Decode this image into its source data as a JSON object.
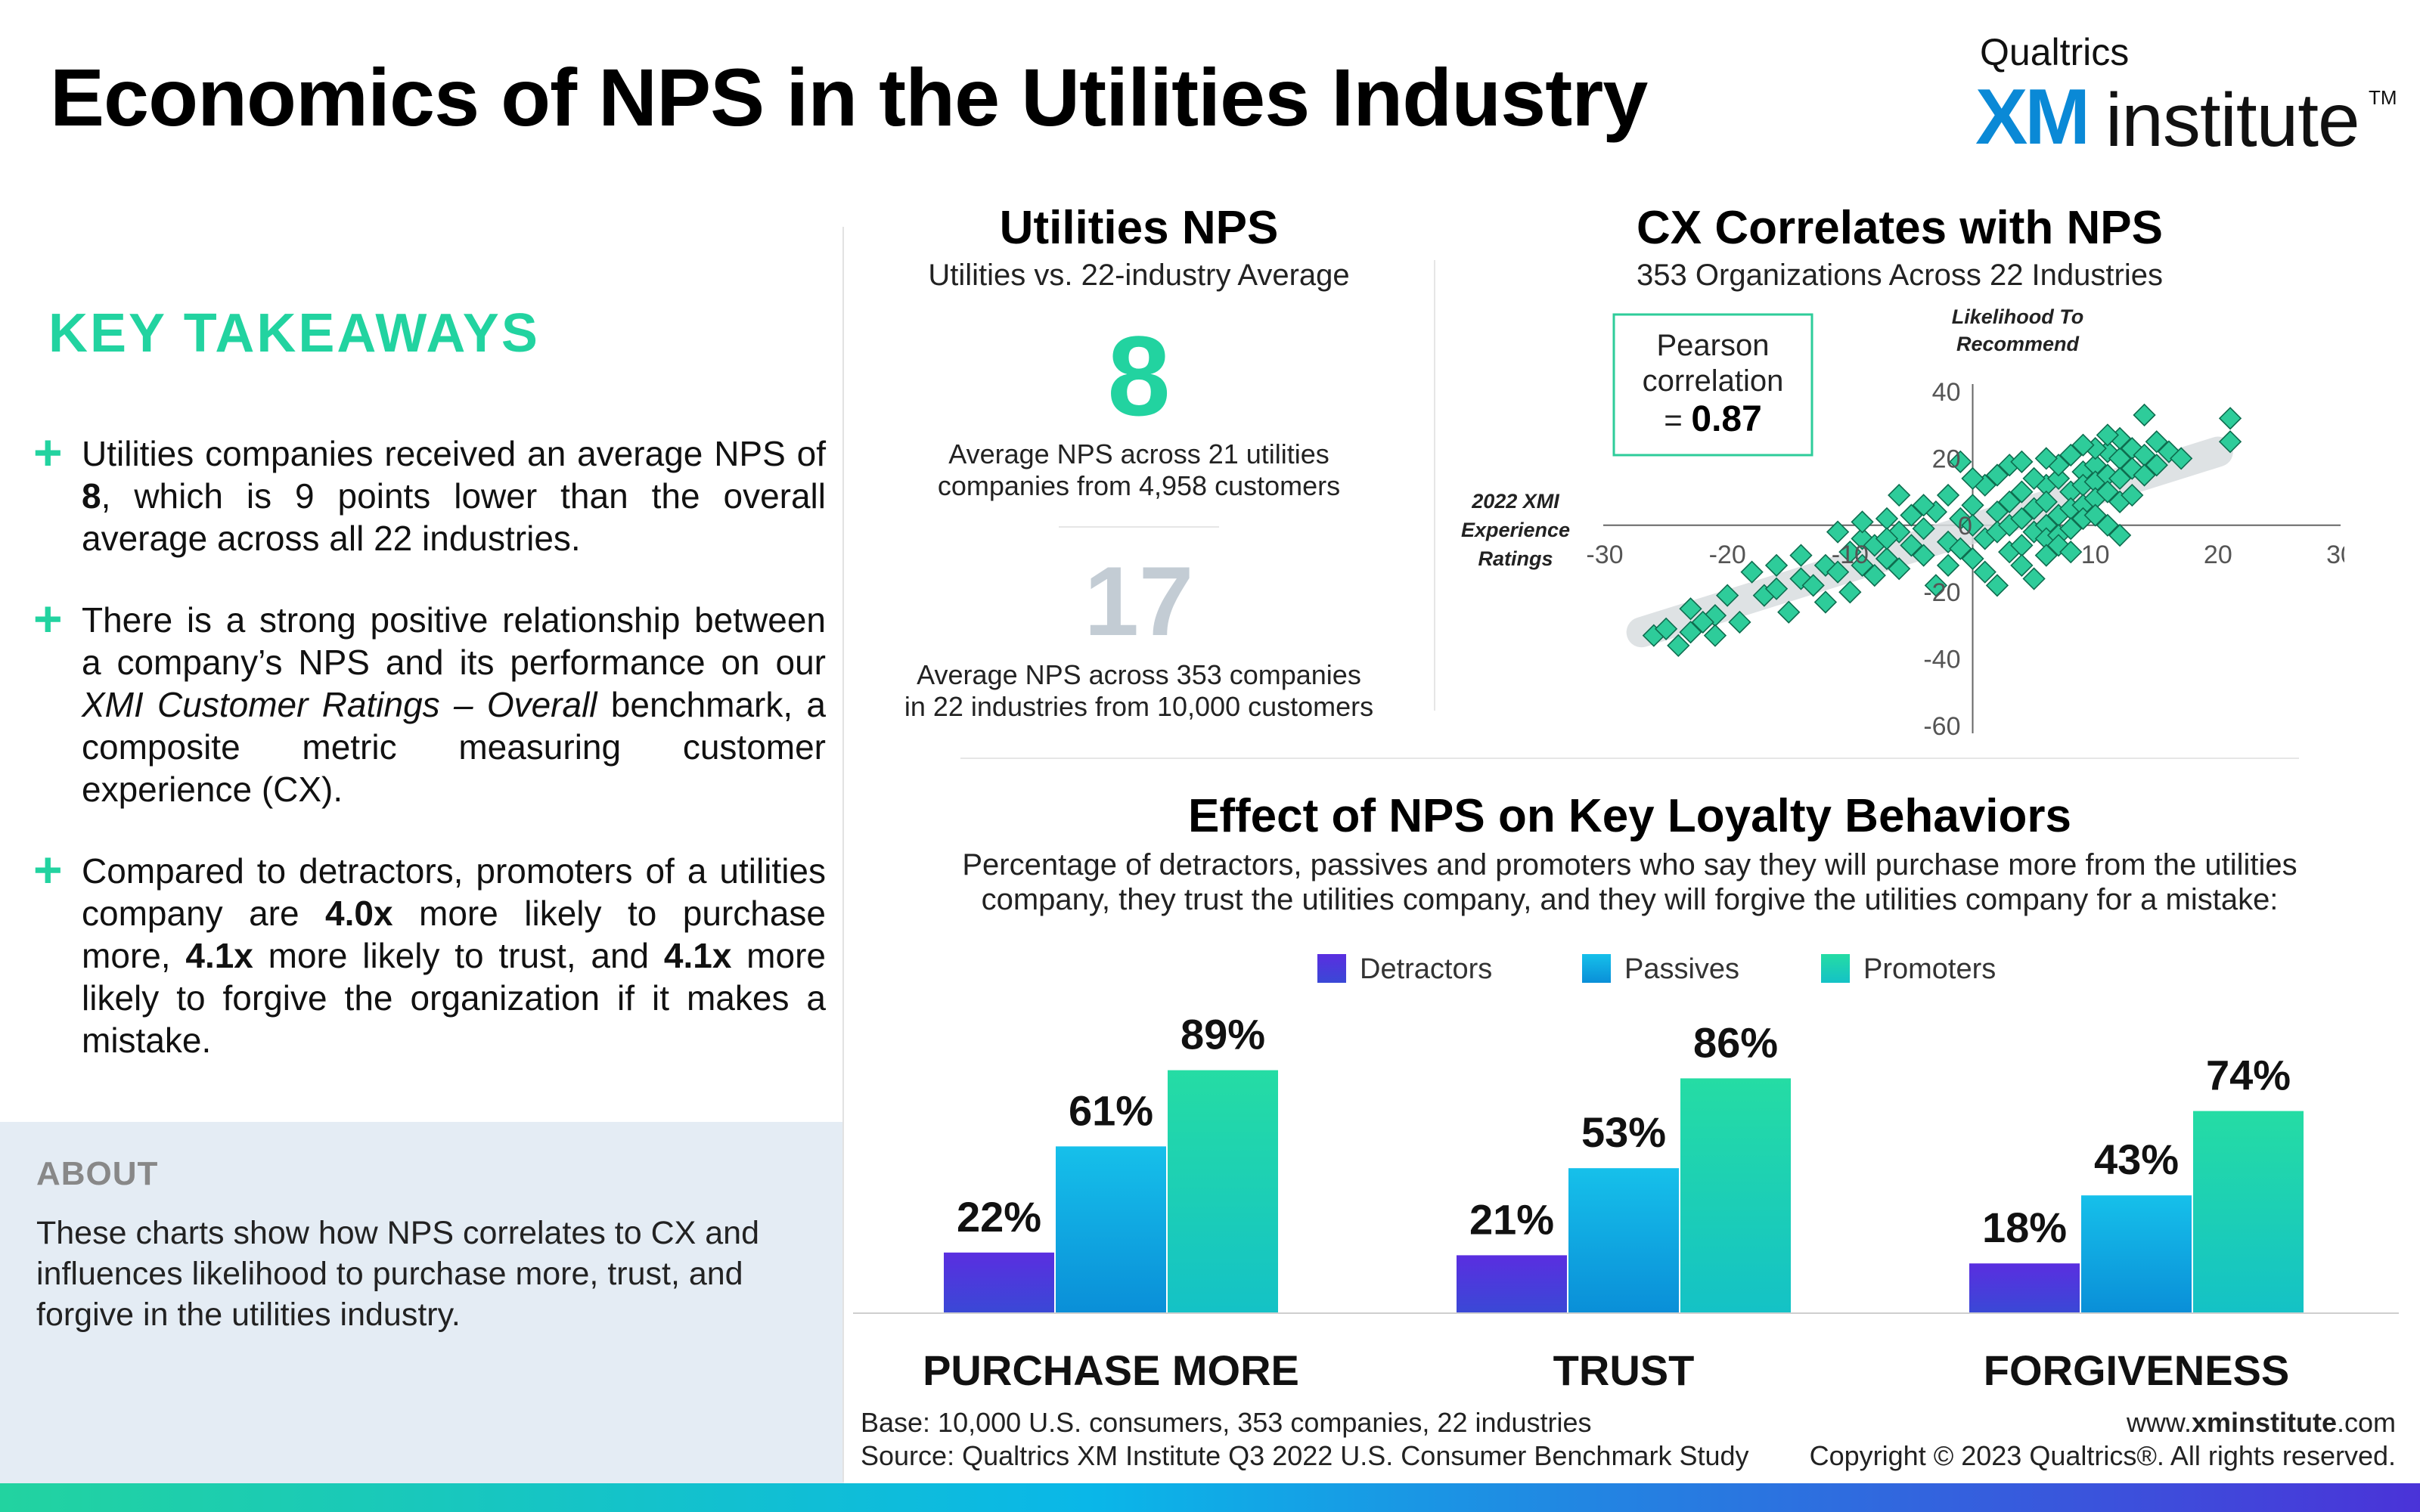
{
  "header": {
    "title": "Economics of NPS in the Utilities Industry",
    "logo": {
      "brand": "Qualtrics",
      "xm": "XM",
      "institute": "institute",
      "tm": "TM"
    }
  },
  "takeaways": {
    "title": "KEY TAKEAWAYS",
    "items": [
      {
        "text_html": "Utilities companies received an average NPS of <b>8</b>, which is 9 points lower than the overall average across all 22 industries."
      },
      {
        "text_html": "There is a strong positive relationship between a company’s NPS and its performance on our <i>XMI Customer Ratings – Overall</i> benchmark, a composite metric measuring customer experience (CX)."
      },
      {
        "text_html": "Compared to detractors, promoters of a utilities company are <b>4.0x</b> more likely to purchase more, <b>4.1x</b> more likely to trust, and <b>4.1x</b> more likely to forgive the organization if it makes a mistake."
      }
    ]
  },
  "about": {
    "title": "ABOUT",
    "text": "These charts show how NPS correlates to CX and influences likelihood to purchase more, trust, and forgive in the utilities industry."
  },
  "nps_panel": {
    "title": "Utilities NPS",
    "subtitle": "Utilities vs. 22-industry Average",
    "utilities_nps": "8",
    "utilities_caption_1": "Average NPS across 21 utilities",
    "utilities_caption_2": "companies from 4,958 customers",
    "industry_nps": "17",
    "industry_caption_1": "Average NPS across 353 companies",
    "industry_caption_2": "in 22 industries from 10,000 customers"
  },
  "scatter_panel": {
    "title": "CX Correlates with NPS",
    "subtitle": "353 Organizations Across 22 Industries",
    "pearson_1": "Pearson",
    "pearson_2": "correlation",
    "pearson_3": "= ",
    "pearson_value": "0.87"
  },
  "bars_panel": {
    "title": "Effect of NPS on Key Loyalty Behaviors",
    "subtitle_1": "Percentage of detractors, passives and promoters who say they will purchase more from the utilities",
    "subtitle_2": "company, they trust the utilities company, and they will forgive the utilities company for a mistake:"
  },
  "chart_data": [
    {
      "type": "scatter",
      "title": "CX Correlates with NPS",
      "subtitle": "353 Organizations Across 22 Industries",
      "xlabel": "2022 XMI Experience Ratings",
      "ylabel": "Likelihood To Recommend",
      "xlim": [
        -30,
        30
      ],
      "ylim": [
        -60,
        40
      ],
      "xticks": [
        -30,
        -20,
        -10,
        0,
        10,
        20,
        30
      ],
      "yticks": [
        40,
        20,
        0,
        -20,
        -40,
        -60
      ],
      "xtick_labels": [
        "-30",
        "-20",
        "-10",
        "0",
        "10",
        "20",
        "30"
      ],
      "ytick_labels": [
        "40",
        "20",
        "0",
        "-20",
        "-40",
        "-60"
      ],
      "pearson_correlation": 0.87,
      "trend": {
        "from": [
          -27,
          -32
        ],
        "to": [
          20,
          22
        ]
      },
      "point_color": "#2ecc9a",
      "points": [
        [
          -26,
          -33
        ],
        [
          -25,
          -31
        ],
        [
          -24,
          -36
        ],
        [
          -23,
          -32
        ],
        [
          -23,
          -25
        ],
        [
          -21,
          -27
        ],
        [
          -19,
          -29
        ],
        [
          -17,
          -21
        ],
        [
          -16,
          -12
        ],
        [
          -15,
          -26
        ],
        [
          -14,
          -16
        ],
        [
          -13,
          -18
        ],
        [
          -12,
          -23
        ],
        [
          -12,
          -12
        ],
        [
          -11,
          -14
        ],
        [
          -10,
          -20
        ],
        [
          -10,
          -8
        ],
        [
          -9,
          -12
        ],
        [
          -9,
          -4
        ],
        [
          -8,
          -15
        ],
        [
          -8,
          -6
        ],
        [
          -7,
          2
        ],
        [
          -7,
          -10
        ],
        [
          -6,
          -13
        ],
        [
          -6,
          -2
        ],
        [
          -5,
          -6
        ],
        [
          -5,
          3
        ],
        [
          -4,
          -9
        ],
        [
          -4,
          -1
        ],
        [
          -3,
          -18
        ],
        [
          -3,
          4
        ],
        [
          -2,
          -5
        ],
        [
          -2,
          -12
        ],
        [
          -1,
          2
        ],
        [
          -1,
          -7
        ],
        [
          0,
          6
        ],
        [
          0,
          0
        ],
        [
          0,
          -10
        ],
        [
          1,
          -4
        ],
        [
          1,
          -14
        ],
        [
          2,
          4
        ],
        [
          2,
          -2
        ],
        [
          2,
          -18
        ],
        [
          3,
          7
        ],
        [
          3,
          0
        ],
        [
          3,
          -8
        ],
        [
          4,
          10
        ],
        [
          4,
          2
        ],
        [
          4,
          -6
        ],
        [
          4,
          -12
        ],
        [
          5,
          5
        ],
        [
          5,
          -2
        ],
        [
          5,
          -16
        ],
        [
          6,
          12
        ],
        [
          6,
          7
        ],
        [
          6,
          0
        ],
        [
          6,
          -4
        ],
        [
          6,
          -9
        ],
        [
          7,
          14
        ],
        [
          7,
          3
        ],
        [
          7,
          -3
        ],
        [
          7,
          -6
        ],
        [
          8,
          10
        ],
        [
          8,
          5
        ],
        [
          8,
          -1
        ],
        [
          8,
          -8
        ],
        [
          9,
          16
        ],
        [
          9,
          12
        ],
        [
          9,
          6
        ],
        [
          9,
          2
        ],
        [
          10,
          18
        ],
        [
          10,
          13
        ],
        [
          10,
          8
        ],
        [
          10,
          3
        ],
        [
          11,
          22
        ],
        [
          11,
          15
        ],
        [
          11,
          10
        ],
        [
          11,
          0
        ],
        [
          12,
          20
        ],
        [
          12,
          14
        ],
        [
          12,
          7
        ],
        [
          12,
          -3
        ],
        [
          13,
          23
        ],
        [
          13,
          17
        ],
        [
          13,
          9
        ],
        [
          14,
          21
        ],
        [
          14,
          15
        ],
        [
          15,
          18
        ],
        [
          16,
          22
        ],
        [
          17,
          20
        ],
        [
          -1,
          19
        ],
        [
          21,
          32
        ],
        [
          21,
          25
        ],
        [
          -20,
          -21
        ],
        [
          -6,
          9
        ],
        [
          14,
          33
        ],
        [
          -18,
          -14
        ],
        [
          -11,
          -2
        ],
        [
          3,
          18
        ],
        [
          5,
          14
        ],
        [
          -4,
          6
        ],
        [
          -2,
          9
        ],
        [
          1,
          12
        ],
        [
          7,
          18
        ],
        [
          8,
          21
        ],
        [
          10,
          23
        ],
        [
          12,
          26
        ],
        [
          15,
          25
        ],
        [
          -9,
          1
        ],
        [
          -7,
          -4
        ],
        [
          -14,
          -9
        ],
        [
          -16,
          -19
        ],
        [
          -21,
          -33
        ],
        [
          -22,
          -29
        ],
        [
          0,
          14
        ],
        [
          2,
          15
        ],
        [
          4,
          19
        ],
        [
          6,
          20
        ],
        [
          9,
          24
        ],
        [
          11,
          27
        ]
      ]
    },
    {
      "type": "bar",
      "title": "Effect of NPS on Key Loyalty Behaviors",
      "categories": [
        "PURCHASE MORE",
        "TRUST",
        "FORGIVENESS"
      ],
      "series": [
        {
          "name": "Detractors",
          "values": [
            22,
            21,
            18
          ],
          "color": "#4a3bd8"
        },
        {
          "name": "Passives",
          "values": [
            61,
            53,
            43
          ],
          "color": "#0ab7e8"
        },
        {
          "name": "Promoters",
          "values": [
            89,
            86,
            74
          ],
          "color": "#22d3a0"
        }
      ],
      "value_suffix": "%",
      "ylim": [
        0,
        100
      ],
      "legend": "top-center"
    }
  ],
  "footer": {
    "base": "Base: 10,000 U.S. consumers, 353 companies, 22 industries",
    "source": "Source: Qualtrics XM Institute Q3 2022 U.S. Consumer Benchmark Study",
    "url_pre": "www.",
    "url_bold": "xminstitute",
    "url_post": ".com",
    "copyright": "Copyright © 2023 Qualtrics®. All rights reserved."
  }
}
